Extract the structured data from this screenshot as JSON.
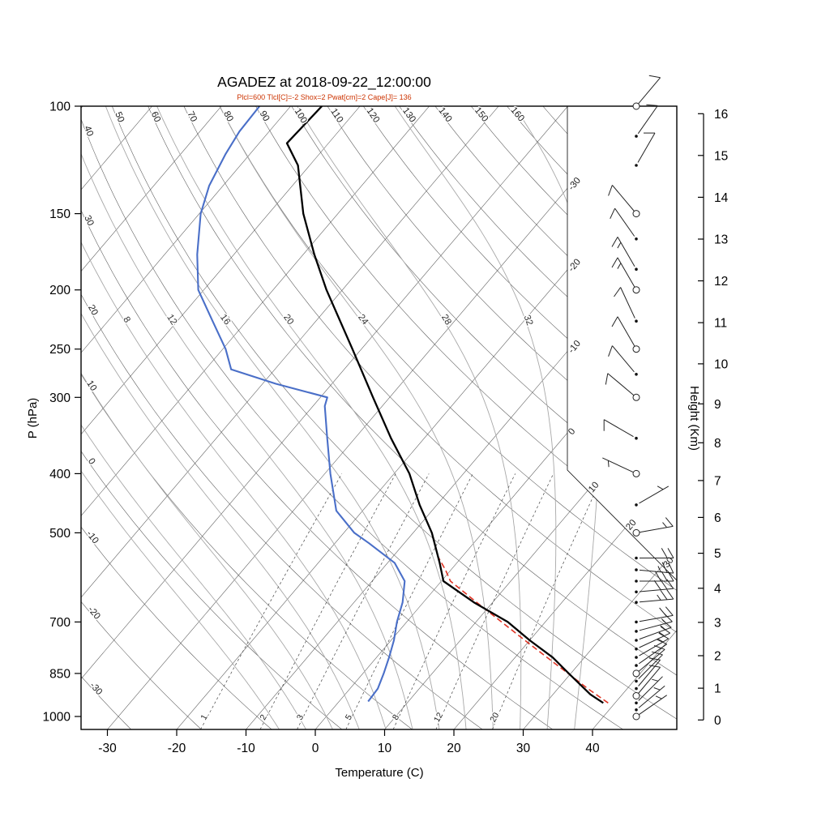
{
  "title": "AGADEZ at 2018-09-22_12:00:00",
  "subtitle": "Plcl=600 Tlcl[C]=-2 Shox=2 Pwat[cm]=2 Cape[J]= 136",
  "colors": {
    "subtitle": "#cc3300",
    "temperature": "#000000",
    "dewpoint": "#4a6fc8",
    "parcel": "#e03424",
    "grid": "#555555",
    "moist_adiabat": "#a8a8a8",
    "mixing_ratio": "#444444"
  },
  "axes": {
    "pressure": {
      "label": "P (hPa)",
      "ticks": [
        100,
        150,
        200,
        250,
        300,
        400,
        500,
        700,
        850,
        1000
      ]
    },
    "temperature": {
      "label": "Temperature (C)",
      "ticks": [
        -30,
        -20,
        -10,
        0,
        10,
        20,
        30,
        40
      ]
    },
    "height": {
      "label": "Height (Km)",
      "ticks": [
        0,
        1,
        2,
        3,
        4,
        5,
        6,
        7,
        8,
        9,
        10,
        11,
        12,
        13,
        14,
        15,
        16
      ]
    }
  },
  "chart_data": {
    "type": "skewt-log-p-sounding",
    "station": "AGADEZ",
    "datetime": "2018-09-22_12:00:00",
    "parameters": {
      "Plcl": 600,
      "Tlcl_C": -2,
      "Shox": 2,
      "Pwat_cm": 2,
      "Cape_J": 136
    },
    "background": {
      "isotherm_labels": [
        -30,
        -20,
        -10,
        0,
        10,
        20,
        30
      ],
      "dry_adiabat_labels": [
        -30,
        -20,
        -10,
        0,
        10,
        20,
        30,
        40,
        50,
        60,
        70,
        80,
        90,
        100,
        110,
        120,
        130,
        140,
        150,
        160
      ],
      "moist_adiabat_labels": [
        8,
        12,
        16,
        20,
        24,
        28,
        32
      ],
      "mixing_ratio_labels": [
        1,
        2,
        3,
        5,
        8,
        12,
        20
      ]
    },
    "temperature_profile": [
      [
        950,
        38.3
      ],
      [
        920,
        35.4
      ],
      [
        850,
        29.7
      ],
      [
        800,
        25.4
      ],
      [
        750,
        20.0
      ],
      [
        700,
        14.6
      ],
      [
        650,
        7.3
      ],
      [
        600,
        0.3
      ],
      [
        560,
        -2.5
      ],
      [
        500,
        -7.3
      ],
      [
        450,
        -12.5
      ],
      [
        400,
        -17.8
      ],
      [
        350,
        -24.8
      ],
      [
        300,
        -32.4
      ],
      [
        250,
        -41.3
      ],
      [
        200,
        -52.3
      ],
      [
        175,
        -58.4
      ],
      [
        150,
        -65.0
      ],
      [
        125,
        -71.7
      ],
      [
        115,
        -76.0
      ],
      [
        100,
        -75.5
      ]
    ],
    "dewpoint_profile": [
      [
        945,
        4.2
      ],
      [
        900,
        4.0
      ],
      [
        850,
        3.0
      ],
      [
        800,
        1.8
      ],
      [
        750,
        0.4
      ],
      [
        700,
        -1.4
      ],
      [
        650,
        -3.0
      ],
      [
        600,
        -5.3
      ],
      [
        560,
        -9.0
      ],
      [
        520,
        -15.1
      ],
      [
        500,
        -18.5
      ],
      [
        460,
        -23.8
      ],
      [
        400,
        -29.2
      ],
      [
        350,
        -34.0
      ],
      [
        310,
        -38.3
      ],
      [
        300,
        -39.0
      ],
      [
        285,
        -48.1
      ],
      [
        270,
        -56.3
      ],
      [
        250,
        -59.6
      ],
      [
        225,
        -64.9
      ],
      [
        200,
        -70.8
      ],
      [
        175,
        -75.3
      ],
      [
        150,
        -79.8
      ],
      [
        135,
        -82.0
      ],
      [
        120,
        -83.5
      ],
      [
        110,
        -84.3
      ],
      [
        100,
        -84.5
      ]
    ],
    "parcel_path": [
      [
        950,
        39.0
      ],
      [
        900,
        34.3
      ],
      [
        850,
        29.6
      ],
      [
        800,
        24.6
      ],
      [
        750,
        19.3
      ],
      [
        700,
        13.7
      ],
      [
        650,
        7.7
      ],
      [
        600,
        1.3
      ],
      [
        575,
        -0.8
      ],
      [
        550,
        -3.2
      ]
    ],
    "wind_barbs": [
      {
        "p": 100,
        "dir": 40,
        "spd": 10,
        "marker": "circle"
      },
      {
        "p": 112,
        "dir": 35,
        "spd": 10,
        "marker": "dot"
      },
      {
        "p": 125,
        "dir": 30,
        "spd": 10,
        "marker": "dot"
      },
      {
        "p": 150,
        "dir": 320,
        "spd": 10,
        "marker": "circle"
      },
      {
        "p": 165,
        "dir": 325,
        "spd": 10,
        "marker": "dot"
      },
      {
        "p": 185,
        "dir": 330,
        "spd": 15,
        "marker": "dot"
      },
      {
        "p": 200,
        "dir": 330,
        "spd": 15,
        "marker": "circle"
      },
      {
        "p": 225,
        "dir": 335,
        "spd": 10,
        "marker": "dot"
      },
      {
        "p": 250,
        "dir": 330,
        "spd": 10,
        "marker": "circle"
      },
      {
        "p": 275,
        "dir": 320,
        "spd": 10,
        "marker": "dot"
      },
      {
        "p": 300,
        "dir": 310,
        "spd": 10,
        "marker": "circle"
      },
      {
        "p": 350,
        "dir": 300,
        "spd": 10,
        "marker": "dot"
      },
      {
        "p": 400,
        "dir": 295,
        "spd": 5,
        "marker": "circle"
      },
      {
        "p": 450,
        "dir": 60,
        "spd": 5,
        "marker": "dot"
      },
      {
        "p": 500,
        "dir": 80,
        "spd": 15,
        "marker": "circle"
      },
      {
        "p": 550,
        "dir": 90,
        "spd": 20,
        "marker": "dot"
      },
      {
        "p": 575,
        "dir": 95,
        "spd": 25,
        "marker": "dot"
      },
      {
        "p": 600,
        "dir": 90,
        "spd": 30,
        "marker": "dot"
      },
      {
        "p": 625,
        "dir": 85,
        "spd": 30,
        "marker": "dot"
      },
      {
        "p": 650,
        "dir": 85,
        "spd": 25,
        "marker": "dot"
      },
      {
        "p": 700,
        "dir": 80,
        "spd": 20,
        "marker": "dot"
      },
      {
        "p": 725,
        "dir": 75,
        "spd": 15,
        "marker": "dot"
      },
      {
        "p": 750,
        "dir": 70,
        "spd": 15,
        "marker": "dot"
      },
      {
        "p": 775,
        "dir": 65,
        "spd": 15,
        "marker": "dot"
      },
      {
        "p": 800,
        "dir": 60,
        "spd": 15,
        "marker": "dot"
      },
      {
        "p": 825,
        "dir": 55,
        "spd": 10,
        "marker": "dot"
      },
      {
        "p": 850,
        "dir": 50,
        "spd": 10,
        "marker": "circle"
      },
      {
        "p": 875,
        "dir": 45,
        "spd": 10,
        "marker": "dot"
      },
      {
        "p": 900,
        "dir": 40,
        "spd": 10,
        "marker": "dot"
      },
      {
        "p": 925,
        "dir": 40,
        "spd": 10,
        "marker": "circle"
      },
      {
        "p": 950,
        "dir": 45,
        "spd": 5,
        "marker": "dot"
      },
      {
        "p": 975,
        "dir": 50,
        "spd": 5,
        "marker": "dot"
      },
      {
        "p": 1000,
        "dir": 55,
        "spd": 5,
        "marker": "circle"
      }
    ]
  }
}
